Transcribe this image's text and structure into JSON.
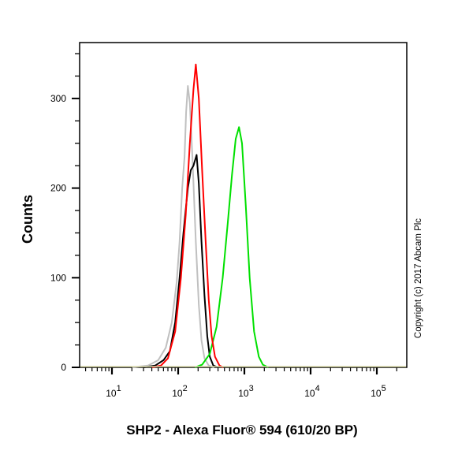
{
  "chart_data": {
    "type": "line",
    "subtype": "flow-cytometry-histogram-overlay",
    "title": "",
    "xlabel": "SHP2 - Alexa Fluor® 594 (610/20 BP)",
    "ylabel": "Counts",
    "xscale": "log",
    "xlim": [
      3,
      200000
    ],
    "ylim": [
      0,
      360
    ],
    "x_ticks": [
      {
        "value": 10,
        "base": "10",
        "exp": "1"
      },
      {
        "value": 100,
        "base": "10",
        "exp": "2"
      },
      {
        "value": 1000,
        "base": "10",
        "exp": "3"
      },
      {
        "value": 10000,
        "base": "10",
        "exp": "4"
      },
      {
        "value": 100000,
        "base": "10",
        "exp": "5"
      }
    ],
    "y_ticks": [
      0,
      100,
      200,
      300
    ],
    "grid": false,
    "legend": null,
    "annotations": [
      "Copyright (c) 2017 Abcam Plc"
    ],
    "series": [
      {
        "name": "gray",
        "color": "#c0c0c0",
        "peak_x": 140,
        "peak_count": 314,
        "points": [
          [
            20,
            0
          ],
          [
            35,
            2
          ],
          [
            50,
            8
          ],
          [
            65,
            22
          ],
          [
            80,
            50
          ],
          [
            95,
            95
          ],
          [
            105,
            140
          ],
          [
            115,
            200
          ],
          [
            125,
            235
          ],
          [
            132,
            285
          ],
          [
            140,
            314
          ],
          [
            150,
            295
          ],
          [
            165,
            230
          ],
          [
            185,
            140
          ],
          [
            205,
            70
          ],
          [
            225,
            30
          ],
          [
            250,
            10
          ],
          [
            290,
            2
          ],
          [
            350,
            0
          ]
        ]
      },
      {
        "name": "black",
        "color": "#000000",
        "peak_x": 190,
        "peak_count": 237,
        "points": [
          [
            30,
            0
          ],
          [
            45,
            2
          ],
          [
            60,
            8
          ],
          [
            75,
            18
          ],
          [
            90,
            50
          ],
          [
            105,
            100
          ],
          [
            120,
            150
          ],
          [
            140,
            200
          ],
          [
            155,
            220
          ],
          [
            170,
            225
          ],
          [
            190,
            237
          ],
          [
            205,
            205
          ],
          [
            225,
            140
          ],
          [
            250,
            80
          ],
          [
            275,
            35
          ],
          [
            300,
            12
          ],
          [
            340,
            2
          ],
          [
            400,
            0
          ]
        ]
      },
      {
        "name": "red",
        "color": "#ff0000",
        "peak_x": 185,
        "peak_count": 338,
        "points": [
          [
            40,
            0
          ],
          [
            55,
            2
          ],
          [
            70,
            10
          ],
          [
            90,
            40
          ],
          [
            110,
            100
          ],
          [
            130,
            170
          ],
          [
            150,
            250
          ],
          [
            170,
            310
          ],
          [
            185,
            338
          ],
          [
            205,
            300
          ],
          [
            230,
            220
          ],
          [
            260,
            140
          ],
          [
            290,
            75
          ],
          [
            320,
            35
          ],
          [
            360,
            12
          ],
          [
            420,
            2
          ],
          [
            480,
            0
          ]
        ]
      },
      {
        "name": "green",
        "color": "#00e000",
        "peak_x": 830,
        "peak_count": 268,
        "points": [
          [
            180,
            0
          ],
          [
            230,
            3
          ],
          [
            300,
            15
          ],
          [
            380,
            45
          ],
          [
            470,
            100
          ],
          [
            560,
            160
          ],
          [
            650,
            215
          ],
          [
            740,
            255
          ],
          [
            830,
            268
          ],
          [
            920,
            250
          ],
          [
            1050,
            180
          ],
          [
            1200,
            100
          ],
          [
            1400,
            40
          ],
          [
            1650,
            12
          ],
          [
            1900,
            3
          ],
          [
            2300,
            0
          ]
        ]
      }
    ]
  }
}
